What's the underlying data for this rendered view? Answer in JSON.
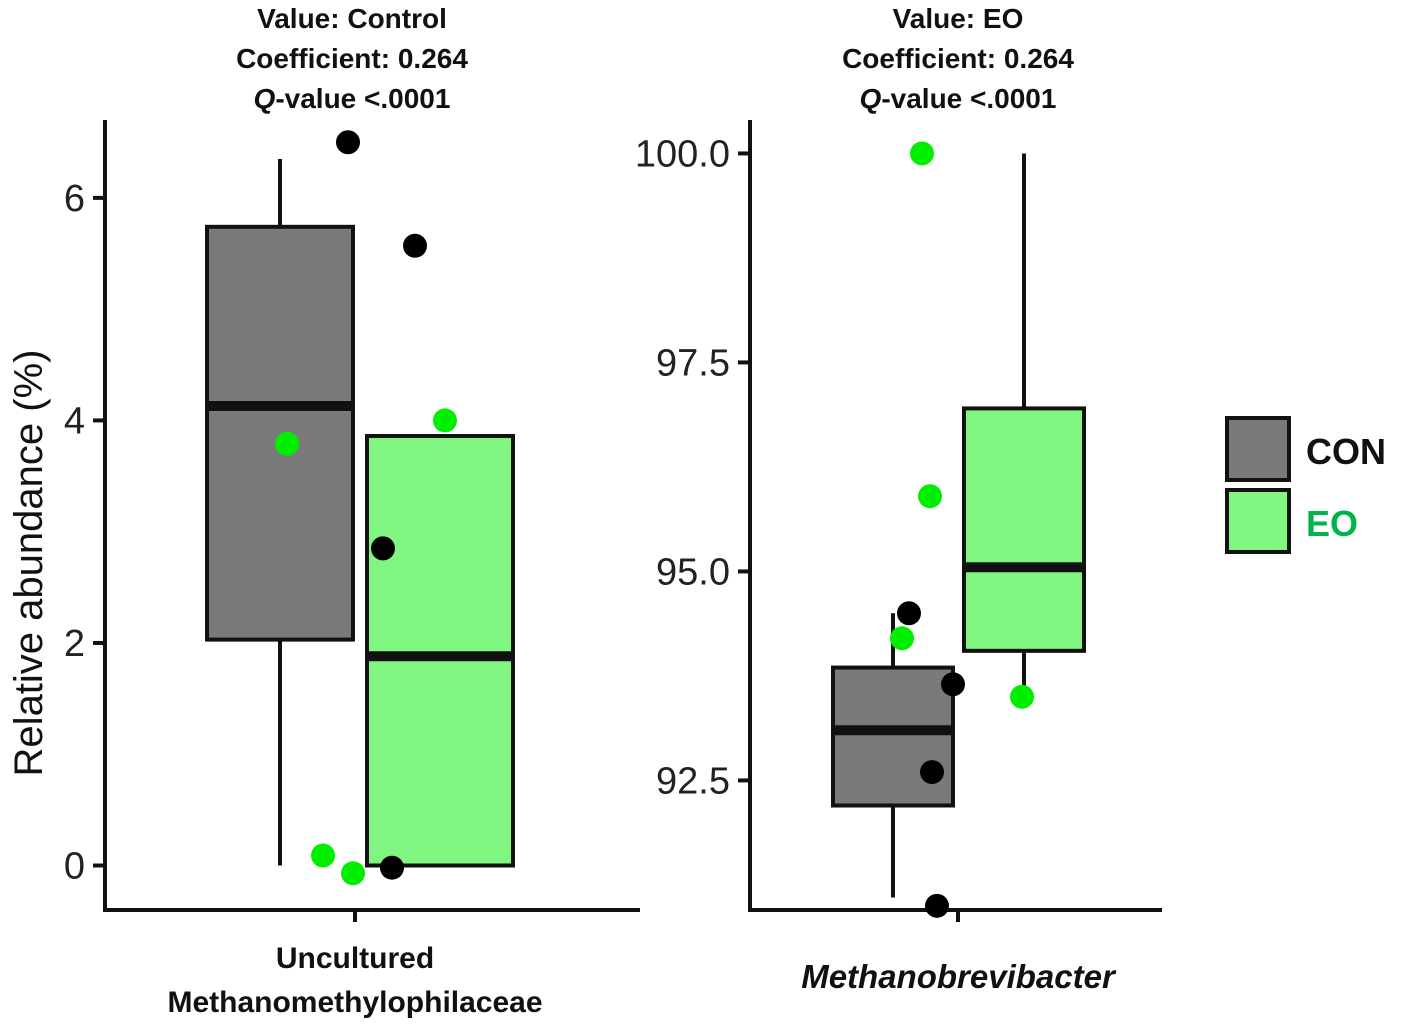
{
  "chart_data": [
    {
      "type": "box",
      "title_lines": [
        {
          "label": "Value: ",
          "value": "Control"
        },
        {
          "label": "Coefficient: ",
          "value": "0.264"
        },
        {
          "prefix_italic": "Q",
          "label": "-value ",
          "value": "<.0001"
        }
      ],
      "ylabel": "Relative abundance (%)",
      "xlabel_lines": [
        "Uncultured",
        "Methanomethylophilaceae"
      ],
      "xlabel_italic": false,
      "ylim": [
        -0.4,
        6.7
      ],
      "yticks": [
        0,
        2,
        4,
        6
      ],
      "ytick_labels": [
        "0",
        "2",
        "4",
        "6"
      ],
      "boxes": [
        {
          "group": "CON",
          "whisker_low": 0.0,
          "q1": 2.03,
          "median": 4.13,
          "q3": 5.74,
          "whisker_high": 6.35
        },
        {
          "group": "EO",
          "whisker_low": 0.0,
          "q1": 0.0,
          "median": 1.88,
          "q3": 3.86,
          "whisker_high": 3.86
        }
      ],
      "points": [
        {
          "group": "CON",
          "y": 6.5
        },
        {
          "group": "CON",
          "y": 5.57
        },
        {
          "group": "CON",
          "y": 2.85
        },
        {
          "group": "CON",
          "y": -0.02
        },
        {
          "group": "EO",
          "y": 3.79
        },
        {
          "group": "EO",
          "y": 4.0
        },
        {
          "group": "EO",
          "y": 0.09
        },
        {
          "group": "EO",
          "y": -0.07
        }
      ]
    },
    {
      "type": "box",
      "title_lines": [
        {
          "label": "Value: ",
          "value": "EO"
        },
        {
          "label": "Coefficient: ",
          "value": "0.264"
        },
        {
          "prefix_italic": "Q",
          "label": "-value ",
          "value": "<.0001"
        }
      ],
      "ylabel": "",
      "xlabel_lines": [
        "Methanobrevibacter"
      ],
      "xlabel_italic": true,
      "ylim": [
        90.95,
        100.4
      ],
      "yticks": [
        92.5,
        95.0,
        97.5,
        100.0
      ],
      "ytick_labels": [
        "92.5",
        "95.0",
        "97.5",
        "100.0"
      ],
      "boxes": [
        {
          "group": "CON",
          "whisker_low": 91.1,
          "q1": 92.2,
          "median": 93.1,
          "q3": 93.85,
          "whisker_high": 94.5
        },
        {
          "group": "EO",
          "whisker_low": 93.6,
          "q1": 94.05,
          "median": 95.05,
          "q3": 96.95,
          "whisker_high": 100.0
        }
      ],
      "points": [
        {
          "group": "CON",
          "y": 94.5
        },
        {
          "group": "CON",
          "y": 93.65
        },
        {
          "group": "CON",
          "y": 92.6
        },
        {
          "group": "CON",
          "y": 91.0
        },
        {
          "group": "EO",
          "y": 100.0
        },
        {
          "group": "EO",
          "y": 95.9
        },
        {
          "group": "EO",
          "y": 94.2
        },
        {
          "group": "EO",
          "y": 93.5
        }
      ]
    }
  ],
  "legend": {
    "position": "right",
    "items": [
      {
        "label": "CON",
        "fill": "#7a7a7a",
        "text_color": "#111111"
      },
      {
        "label": "EO",
        "fill": "#80f57f",
        "text_color": "#00b34a"
      }
    ]
  },
  "colors": {
    "con_fill": "#7a7a7a",
    "eo_fill": "#80f57f",
    "con_point": "#000000",
    "eo_point": "#00ee00",
    "stroke": "#111111"
  }
}
